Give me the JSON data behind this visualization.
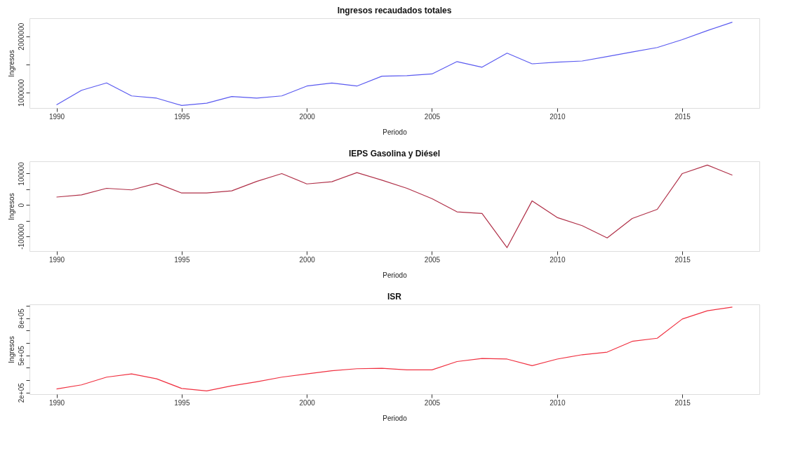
{
  "chart_data": [
    {
      "type": "line",
      "title": "Ingresos recaudados totales",
      "xlabel": "Periodo",
      "ylabel": "Ingresos",
      "grid": false,
      "x": [
        1990,
        1991,
        1992,
        1993,
        1994,
        1995,
        1996,
        1997,
        1998,
        1999,
        2000,
        2001,
        2002,
        2003,
        2004,
        2005,
        2006,
        2007,
        2008,
        2009,
        2010,
        2011,
        2012,
        2013,
        2014,
        2015,
        2016,
        2017
      ],
      "series": [
        {
          "color": "#5a5af0",
          "values": [
            780000,
            1040000,
            1170000,
            940000,
            900000,
            770000,
            810000,
            930000,
            900000,
            940000,
            1115000,
            1170000,
            1115000,
            1290000,
            1300000,
            1330000,
            1550000,
            1450000,
            1700000,
            1510000,
            1540000,
            1560000,
            1640000,
            1720000,
            1800000,
            1940000,
            2100000,
            2250000
          ]
        }
      ],
      "xlim": [
        1988.92,
        2018.08
      ],
      "xticks": [
        1990,
        1995,
        2000,
        2005,
        2010,
        2015
      ],
      "ylim": [
        725000,
        2320000
      ],
      "yticks": [
        1000000,
        {
          "value": 1500000,
          "label": null
        },
        2000000
      ]
    },
    {
      "type": "line",
      "title": "IEPS Gasolina y Diésel",
      "xlabel": "Periodo",
      "ylabel": "Ingresos",
      "grid": false,
      "x": [
        1990,
        1991,
        1992,
        1993,
        1994,
        1995,
        1996,
        1997,
        1998,
        1999,
        2000,
        2001,
        2002,
        2003,
        2004,
        2005,
        2006,
        2007,
        2008,
        2009,
        2010,
        2011,
        2012,
        2013,
        2014,
        2015,
        2016,
        2017
      ],
      "series": [
        {
          "color": "#b03048",
          "values": [
            25000,
            32000,
            53000,
            48000,
            69000,
            38000,
            38000,
            45000,
            75000,
            100000,
            67000,
            74000,
            103000,
            79000,
            53000,
            20000,
            -22000,
            -27000,
            -136000,
            13000,
            -40000,
            -66000,
            -105000,
            -43000,
            -14000,
            100000,
            127000,
            95000
          ]
        }
      ],
      "xlim": [
        1988.92,
        2018.08
      ],
      "xticks": [
        1990,
        1995,
        2000,
        2005,
        2010,
        2015
      ],
      "ylim": [
        -147000,
        139000
      ],
      "yticks": [
        -100000,
        {
          "value": -50000,
          "label": null
        },
        0,
        {
          "value": 50000,
          "label": null
        },
        100000
      ]
    },
    {
      "type": "line",
      "title": "ISR",
      "xlabel": "Periodo",
      "ylabel": "Ingresos",
      "grid": false,
      "x": [
        1990,
        1991,
        1992,
        1993,
        1994,
        1995,
        1996,
        1997,
        1998,
        1999,
        2000,
        2001,
        2002,
        2003,
        2004,
        2005,
        2006,
        2007,
        2008,
        2009,
        2010,
        2011,
        2012,
        2013,
        2014,
        2015,
        2016,
        2017
      ],
      "series": [
        {
          "color": "#f03040",
          "values": [
            229000,
            262000,
            324000,
            350000,
            311000,
            233000,
            213000,
            254000,
            287000,
            324000,
            350000,
            376000,
            392000,
            396000,
            383000,
            383000,
            450000,
            475000,
            470000,
            417000,
            470000,
            505000,
            526000,
            613000,
            638000,
            793000,
            859000,
            889000
          ]
        }
      ],
      "xlim": [
        1988.92,
        2018.08
      ],
      "xticks": [
        1990,
        1995,
        2000,
        2005,
        2010,
        2015
      ],
      "ylim": [
        187000,
        911000
      ],
      "yticks": [
        {
          "value": 200000,
          "label": "2e+05"
        },
        {
          "value": 300000,
          "label": null
        },
        {
          "value": 400000,
          "label": null
        },
        {
          "value": 500000,
          "label": "5e+05"
        },
        {
          "value": 600000,
          "label": null
        },
        {
          "value": 700000,
          "label": null
        },
        {
          "value": 800000,
          "label": "8e+05"
        },
        {
          "value": 900000,
          "label": null
        }
      ]
    }
  ]
}
